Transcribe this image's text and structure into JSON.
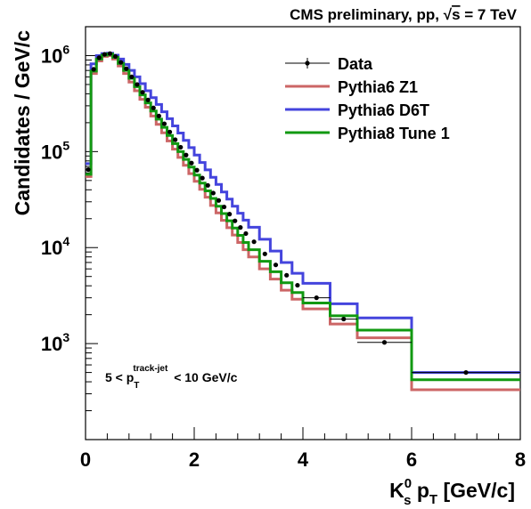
{
  "chart_data": {
    "type": "line",
    "title": "CMS preliminary, pp, √s = 7 TeV",
    "title_parts": {
      "prefix": "CMS preliminary, pp, ",
      "sqrt": "√",
      "s": "s",
      "suffix": " = 7 TeV"
    },
    "xlabel": "K",
    "xlabel_sup": "0",
    "xlabel_sub": "s",
    "xlabel_mid": " p",
    "xlabel_sub2": "T",
    "xlabel_unit": " [GeV/c]",
    "ylabel": "Candidates / GeV/c",
    "xlim": [
      0,
      8
    ],
    "ylim": [
      100,
      2000000
    ],
    "yscale": "log",
    "x_ticks": [
      "0",
      "2",
      "4",
      "6",
      "8"
    ],
    "y_ticks": [
      {
        "base": "10",
        "exp": "3",
        "value": 1000
      },
      {
        "base": "10",
        "exp": "4",
        "value": 10000
      },
      {
        "base": "10",
        "exp": "5",
        "value": 100000
      },
      {
        "base": "10",
        "exp": "6",
        "value": 1000000
      }
    ],
    "annotation": {
      "prefix": "5 < p",
      "sub": "T",
      "sup": "track-jet",
      "suffix": " < 10 GeV/c"
    },
    "legend_position": "top-right",
    "bin_edges": [
      0,
      0.1,
      0.2,
      0.3,
      0.4,
      0.5,
      0.6,
      0.7,
      0.8,
      0.9,
      1.0,
      1.1,
      1.2,
      1.3,
      1.4,
      1.5,
      1.6,
      1.7,
      1.8,
      1.9,
      2.0,
      2.1,
      2.2,
      2.3,
      2.4,
      2.5,
      2.6,
      2.7,
      2.8,
      2.9,
      3.0,
      3.2,
      3.4,
      3.6,
      3.8,
      4.0,
      4.5,
      5.0,
      6.0,
      8.0
    ],
    "series": [
      {
        "name": "Data",
        "style": "points",
        "color": "#000000",
        "values": [
          65000,
          720000,
          950000,
          1030000,
          1050000,
          980000,
          850000,
          730000,
          600000,
          500000,
          415000,
          345000,
          285000,
          235000,
          195000,
          160000,
          133000,
          111000,
          92000,
          76000,
          64000,
          53000,
          44500,
          37000,
          31000,
          26500,
          22300,
          19000,
          16200,
          14000,
          11500,
          8600,
          6600,
          5150,
          4050,
          3000,
          1800,
          1030,
          500
        ]
      },
      {
        "name": "Pythia6 Z1",
        "style": "step",
        "color": "#cc6666",
        "values": [
          55000,
          650000,
          880000,
          980000,
          1000000,
          920000,
          780000,
          650000,
          530000,
          430000,
          350000,
          290000,
          235000,
          192000,
          157000,
          129000,
          106000,
          87000,
          72000,
          59000,
          49000,
          40500,
          33500,
          27500,
          23000,
          19200,
          16100,
          13500,
          11300,
          9500,
          8000,
          6000,
          4700,
          3600,
          2900,
          2300,
          1600,
          1150,
          330
        ]
      },
      {
        "name": "Pythia6 D6T",
        "style": "step",
        "color": "#4444dd",
        "values": [
          75000,
          820000,
          1000000,
          1050000,
          1060000,
          1010000,
          920000,
          810000,
          700000,
          600000,
          510000,
          430000,
          365000,
          310000,
          260000,
          220000,
          185000,
          156000,
          131000,
          110000,
          92000,
          77000,
          64500,
          54000,
          45500,
          38000,
          32000,
          27000,
          22800,
          19300,
          16300,
          12200,
          9200,
          7000,
          5400,
          4250,
          2600,
          1850,
          500
        ]
      },
      {
        "name": "Pythia8 Tune 1",
        "style": "step",
        "color": "#119911",
        "values": [
          58000,
          690000,
          920000,
          1010000,
          1040000,
          960000,
          830000,
          700000,
          580000,
          475000,
          390000,
          322000,
          265000,
          218000,
          179000,
          147000,
          121000,
          100000,
          83000,
          69000,
          57000,
          47000,
          39000,
          32500,
          27000,
          22600,
          19000,
          16000,
          13400,
          11300,
          9500,
          7200,
          5600,
          4300,
          3400,
          2650,
          1950,
          1380,
          420
        ]
      }
    ]
  }
}
